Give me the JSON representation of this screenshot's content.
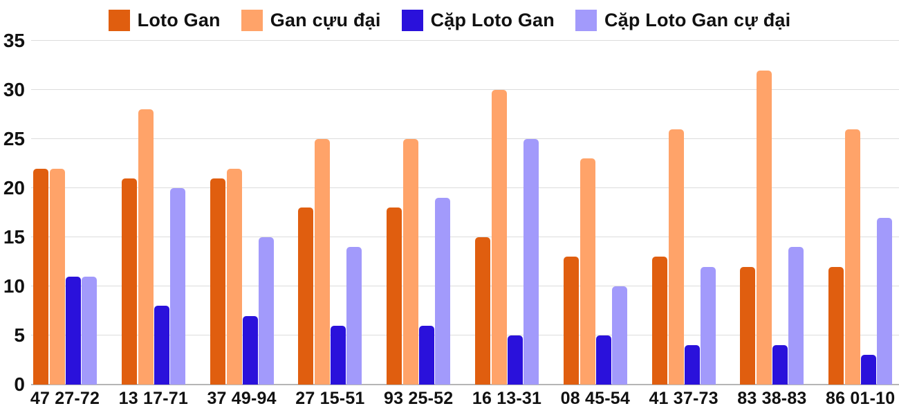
{
  "chart_data": {
    "type": "bar",
    "title": "",
    "xlabel": "",
    "ylabel": "",
    "categories": [
      "47 27-72",
      "13 17-71",
      "37 49-94",
      "27 15-51",
      "93 25-52",
      "16 13-31",
      "08 45-54",
      "41 37-73",
      "83 38-83",
      "86 01-10"
    ],
    "series": [
      {
        "name": "Loto Gan",
        "color": "#e05e0f",
        "values": [
          22,
          21,
          21,
          18,
          18,
          15,
          13,
          13,
          12,
          12
        ]
      },
      {
        "name": "Gan cựu đại",
        "color": "#ffa369",
        "values": [
          22,
          28,
          22,
          25,
          25,
          30,
          23,
          26,
          32,
          26
        ]
      },
      {
        "name": "Cặp Loto Gan",
        "color": "#2a11db",
        "values": [
          11,
          8,
          7,
          6,
          6,
          5,
          5,
          4,
          4,
          3
        ]
      },
      {
        "name": "Cặp Loto Gan cự đại",
        "color": "#a29afb",
        "values": [
          11,
          20,
          15,
          14,
          19,
          25,
          10,
          12,
          14,
          17
        ]
      }
    ],
    "ylim": [
      0,
      35
    ],
    "y_ticks": [
      0,
      5,
      10,
      15,
      20,
      25,
      30,
      35
    ],
    "grid": true,
    "legend_position": "top"
  },
  "styles": {
    "grid_color": "#dcdcdc",
    "baseline_color": "#b5b5b5",
    "text_color": "#111111",
    "background": "#ffffff"
  }
}
